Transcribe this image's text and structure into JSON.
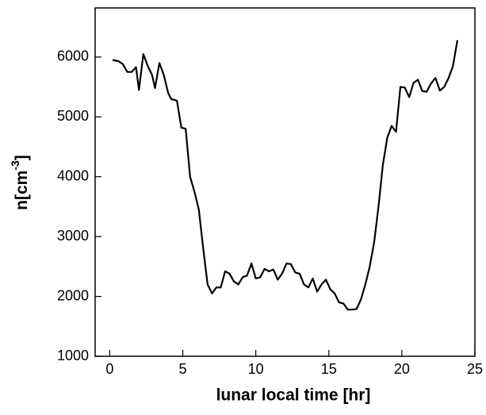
{
  "chart_data": {
    "type": "line",
    "xlabel": "lunar local time [hr]",
    "ylabel": {
      "text": "n[cm",
      "superscript": "-3",
      "suffix": "]"
    },
    "xlim": [
      -1,
      25
    ],
    "ylim": [
      1000,
      6820
    ],
    "xticks": [
      0,
      5,
      10,
      15,
      20,
      25
    ],
    "yticks": [
      1000,
      2000,
      3000,
      4000,
      5000,
      6000
    ],
    "series": [
      {
        "color": "#000000",
        "x": [
          0.2,
          0.6,
          0.9,
          1.2,
          1.5,
          1.8,
          2.0,
          2.3,
          2.6,
          2.9,
          3.1,
          3.4,
          3.7,
          4.0,
          4.2,
          4.6,
          4.9,
          5.2,
          5.5,
          5.8,
          6.1,
          6.4,
          6.7,
          7.0,
          7.3,
          7.6,
          7.9,
          8.2,
          8.5,
          8.8,
          9.1,
          9.4,
          9.7,
          10.0,
          10.3,
          10.6,
          10.9,
          11.2,
          11.5,
          11.8,
          12.1,
          12.4,
          12.7,
          13.0,
          13.3,
          13.6,
          13.9,
          14.2,
          14.5,
          14.8,
          15.1,
          15.4,
          15.7,
          16.0,
          16.3,
          16.6,
          16.9,
          17.2,
          17.5,
          17.8,
          18.1,
          18.4,
          18.7,
          19.0,
          19.3,
          19.6,
          19.9,
          20.2,
          20.5,
          20.8,
          21.1,
          21.4,
          21.7,
          22.0,
          22.3,
          22.6,
          22.9,
          23.2,
          23.5,
          23.8
        ],
        "values": [
          5950,
          5930,
          5880,
          5750,
          5750,
          5830,
          5450,
          6050,
          5850,
          5700,
          5480,
          5900,
          5700,
          5400,
          5300,
          5270,
          4820,
          4800,
          4000,
          3750,
          3450,
          2800,
          2200,
          2050,
          2150,
          2150,
          2420,
          2380,
          2250,
          2200,
          2320,
          2350,
          2550,
          2300,
          2320,
          2460,
          2420,
          2450,
          2280,
          2380,
          2550,
          2540,
          2400,
          2380,
          2200,
          2150,
          2300,
          2080,
          2200,
          2280,
          2120,
          2050,
          1900,
          1880,
          1780,
          1780,
          1790,
          1950,
          2200,
          2500,
          2900,
          3500,
          4200,
          4650,
          4850,
          4750,
          5500,
          5490,
          5330,
          5570,
          5620,
          5430,
          5420,
          5560,
          5650,
          5440,
          5500,
          5650,
          5850,
          6280
        ]
      }
    ]
  }
}
